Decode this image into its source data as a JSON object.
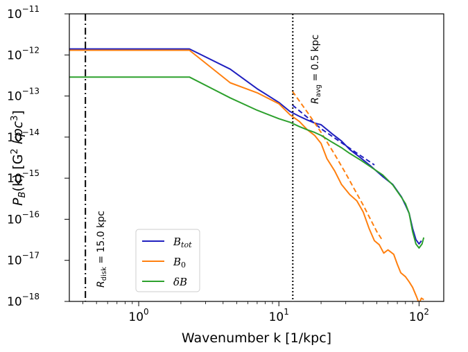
{
  "chart_data": {
    "type": "line",
    "title": "",
    "xlabel": "Wavenumber k [1/kpc]",
    "ylabel_parts": {
      "p": "P",
      "sub": "B",
      "mid": "(k) [G",
      "sup1": "2",
      "unit": " kpc",
      "sup2": "3",
      "end": "]"
    },
    "xscale": "log",
    "yscale": "log",
    "xlim": [
      0.32,
      150
    ],
    "ylim": [
      1e-18,
      1e-11
    ],
    "x_ticks": [
      {
        "base": "10",
        "exp": "0",
        "value": 1
      },
      {
        "base": "10",
        "exp": "1",
        "value": 10
      },
      {
        "base": "10",
        "exp": "2",
        "value": 100
      }
    ],
    "y_ticks": [
      {
        "base": "10",
        "exp": "−11",
        "value": 1e-11
      },
      {
        "base": "10",
        "exp": "−12",
        "value": 1e-12
      },
      {
        "base": "10",
        "exp": "−13",
        "value": 1e-13
      },
      {
        "base": "10",
        "exp": "−14",
        "value": 1e-14
      },
      {
        "base": "10",
        "exp": "−15",
        "value": 1e-15
      },
      {
        "base": "10",
        "exp": "−16",
        "value": 1e-16
      },
      {
        "base": "10",
        "exp": "−17",
        "value": 1e-17
      },
      {
        "base": "10",
        "exp": "−18",
        "value": 1e-18
      }
    ],
    "vlines": [
      {
        "x": 0.4167,
        "style": "dashdot",
        "label_main": "R",
        "label_sub": "disk",
        "label_rest": " = 15.0 kpc"
      },
      {
        "x": 12.57,
        "style": "dotted",
        "label_main": "R",
        "label_sub": "avg",
        "label_rest": " = 0.5 kpc"
      }
    ],
    "legend": {
      "placement": "lower-left",
      "entries": [
        {
          "name": "B",
          "sub": "tot",
          "color": "#1f1fbf"
        },
        {
          "name": "B",
          "sub": "0",
          "color": "#ff7f0e"
        },
        {
          "name": "δB",
          "sub": "",
          "color": "#2ca02c"
        }
      ]
    },
    "series": [
      {
        "name": "B_tot",
        "color": "#1f1fbf",
        "style": "solid",
        "x": [
          0.32,
          2.3,
          4.5,
          7,
          10,
          12,
          14,
          16,
          18,
          20,
          24,
          28,
          32,
          38,
          45,
          55,
          65,
          75,
          80,
          85,
          90,
          95,
          100,
          104
        ],
        "y": [
          1.4e-12,
          1.4e-12,
          4.5e-13,
          1.5e-13,
          7e-14,
          4.2e-14,
          3.2e-14,
          2.6e-14,
          2.2e-14,
          2e-14,
          1.2e-14,
          8e-15,
          5e-15,
          3.2e-15,
          2e-15,
          1.1e-15,
          7e-16,
          3.5e-16,
          2.2e-16,
          1.4e-16,
          6e-17,
          3.2e-17,
          2.5e-17,
          3e-17
        ]
      },
      {
        "name": "B_tot fit",
        "color": "#1f1fbf",
        "style": "dashed",
        "x": [
          12.5,
          20,
          30,
          40,
          48
        ],
        "y": [
          6e-14,
          1.6e-14,
          6.2e-15,
          3.2e-15,
          2.1e-15
        ]
      },
      {
        "name": "B_0",
        "color": "#ff7f0e",
        "style": "solid",
        "x": [
          0.32,
          2.3,
          4.5,
          7,
          10,
          12,
          14,
          16,
          18,
          20,
          22,
          25,
          28,
          32,
          36,
          40,
          44,
          48,
          52,
          56,
          60,
          66,
          70,
          74,
          80,
          85,
          90,
          96,
          100,
          104,
          108
        ],
        "y": [
          1.3e-12,
          1.3e-12,
          2.1e-13,
          1.2e-13,
          6.5e-14,
          3.5e-14,
          2.4e-14,
          1.5e-14,
          1.1e-14,
          7e-15,
          3e-15,
          1.5e-15,
          7e-16,
          4e-16,
          2.8e-16,
          1.5e-16,
          6e-17,
          3e-17,
          2.4e-17,
          1.5e-17,
          1.8e-17,
          1.4e-17,
          8e-18,
          5e-18,
          4e-18,
          3e-18,
          2.2e-18,
          1.3e-18,
          9e-19,
          1.2e-18,
          1.1e-18
        ]
      },
      {
        "name": "B_0 fit",
        "color": "#ff7f0e",
        "style": "dashed",
        "x": [
          12.5,
          16,
          20,
          25,
          30,
          35,
          40,
          45,
          50,
          55
        ],
        "y": [
          1.3e-13,
          4e-14,
          1.3e-14,
          3.8e-15,
          1.3e-15,
          5e-16,
          2.2e-16,
          1e-16,
          5e-17,
          3e-17
        ]
      },
      {
        "name": "δB",
        "color": "#2ca02c",
        "style": "solid",
        "x": [
          0.32,
          2.3,
          4.5,
          7,
          10,
          12,
          14,
          16,
          18,
          20,
          24,
          28,
          32,
          38,
          45,
          55,
          65,
          75,
          80,
          85,
          90,
          95,
          100,
          105,
          108
        ],
        "y": [
          2.9e-13,
          2.9e-13,
          9e-14,
          4.5e-14,
          2.8e-14,
          2.3e-14,
          1.8e-14,
          1.5e-14,
          1.3e-14,
          1.1e-14,
          7.5e-15,
          5.5e-15,
          4e-15,
          2.8e-15,
          1.9e-15,
          1.2e-15,
          6.8e-16,
          3.4e-16,
          2.4e-16,
          1.4e-16,
          5e-17,
          2.5e-17,
          2e-17,
          2.5e-17,
          3.6e-17
        ]
      }
    ]
  }
}
